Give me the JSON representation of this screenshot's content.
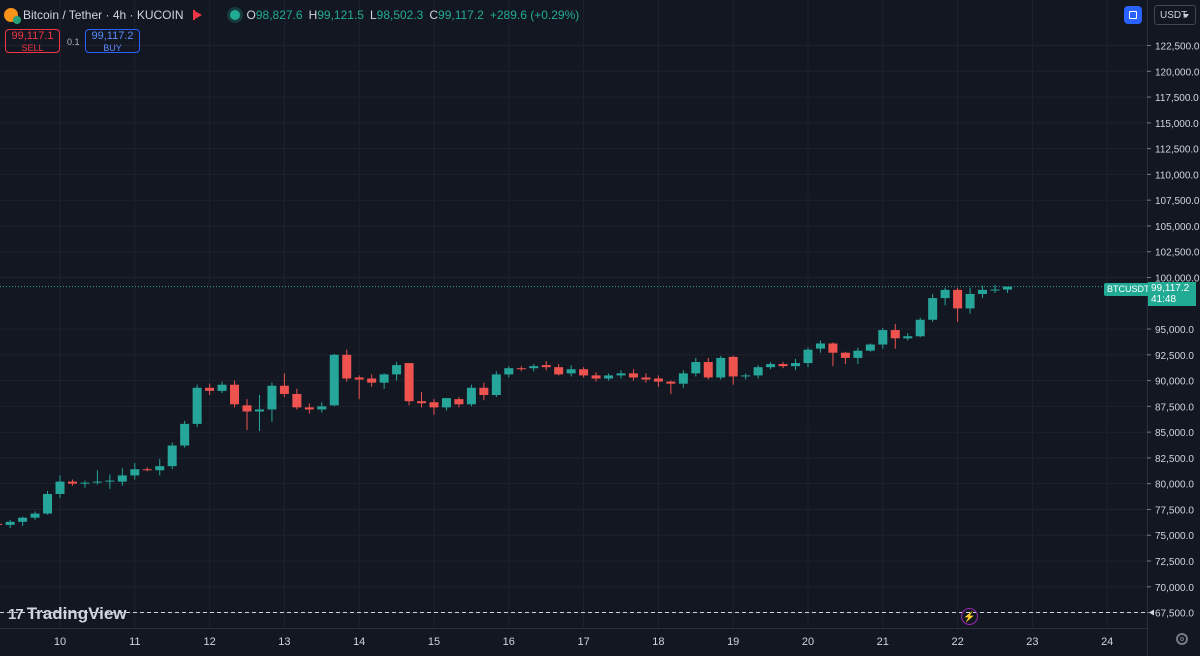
{
  "header": {
    "title": "Bitcoin / Tether · 4h · KUCOIN",
    "ohlc": [
      {
        "key": "O",
        "value": "98,827.6"
      },
      {
        "key": "H",
        "value": "99,121.5"
      },
      {
        "key": "L",
        "value": "98,502.3"
      },
      {
        "key": "C",
        "value": "99,117.2"
      }
    ],
    "change": "+289.6 (+0.29%)"
  },
  "trade": {
    "sell_price": "99,117.1",
    "sell_label": "SELL",
    "spread": "0.1",
    "buy_price": "99,117.2",
    "buy_label": "BUY"
  },
  "currency": "USDT",
  "brand": "TradingView",
  "last_price": {
    "symbol": "BTCUSDT",
    "price": "99,117.2",
    "countdown": "41:48"
  },
  "colors": {
    "background": "#131722",
    "up": "#26a69a",
    "down": "#ef5350",
    "grid": "#1e222d",
    "axis_text": "#d1d4dc",
    "price_line": "#22ab94"
  },
  "chart_data": {
    "type": "candlestick",
    "x_tick_labels": [
      "10",
      "11",
      "12",
      "13",
      "14",
      "15",
      "16",
      "17",
      "18",
      "19",
      "20",
      "21",
      "22",
      "23",
      "24"
    ],
    "y_tick_labels": [
      "122,500.0",
      "120,000.0",
      "117,500.0",
      "115,000.0",
      "112,500.0",
      "110,000.0",
      "107,500.0",
      "105,000.0",
      "102,500.0",
      "100,000.0",
      "95,000.0",
      "92,500.0",
      "90,000.0",
      "87,500.0",
      "85,000.0",
      "82,500.0",
      "80,000.0",
      "77,500.0",
      "75,000.0",
      "72,500.0",
      "70,000.0",
      "67,500.0"
    ],
    "ylim": [
      66000,
      124200
    ],
    "dashed_level": 67500,
    "last_price_level": 99117.2,
    "candles": [
      [
        76500,
        76700,
        76300,
        76450
      ],
      [
        76450,
        76600,
        76200,
        76550
      ],
      [
        76400,
        76500,
        76000,
        76200
      ],
      [
        76100,
        76300,
        75800,
        76000
      ],
      [
        76000,
        76500,
        75700,
        76300
      ],
      [
        76300,
        76800,
        75900,
        76700
      ],
      [
        76700,
        77300,
        76500,
        77100
      ],
      [
        77100,
        79300,
        77000,
        79000
      ],
      [
        79000,
        80800,
        78600,
        80200
      ],
      [
        80200,
        80400,
        79800,
        80000
      ],
      [
        80000,
        80300,
        79600,
        80100
      ],
      [
        80100,
        81300,
        79900,
        80200
      ],
      [
        80200,
        80900,
        79500,
        80300
      ],
      [
        80200,
        81500,
        79800,
        80800
      ],
      [
        80800,
        82000,
        80400,
        81400
      ],
      [
        81400,
        81600,
        81200,
        81300
      ],
      [
        81300,
        82400,
        80800,
        81700
      ],
      [
        81700,
        84000,
        81400,
        83700
      ],
      [
        83700,
        86100,
        83500,
        85800
      ],
      [
        85800,
        89600,
        85500,
        89300
      ],
      [
        89300,
        89700,
        88600,
        89000
      ],
      [
        89000,
        89900,
        88800,
        89600
      ],
      [
        89600,
        90000,
        87400,
        87700
      ],
      [
        87600,
        88200,
        85200,
        87000
      ],
      [
        87000,
        88600,
        85100,
        87200
      ],
      [
        87200,
        89800,
        86000,
        89500
      ],
      [
        89500,
        90700,
        88400,
        88700
      ],
      [
        88700,
        89200,
        87200,
        87400
      ],
      [
        87400,
        87800,
        86800,
        87200
      ],
      [
        87200,
        87900,
        86900,
        87500
      ],
      [
        87600,
        92600,
        87500,
        92500
      ],
      [
        92500,
        93000,
        89900,
        90200
      ],
      [
        90300,
        90500,
        88200,
        90100
      ],
      [
        90200,
        90600,
        89400,
        89800
      ],
      [
        89800,
        90700,
        89200,
        90600
      ],
      [
        90600,
        91800,
        90000,
        91500
      ],
      [
        91700,
        91700,
        87600,
        88000
      ],
      [
        88000,
        88900,
        87400,
        87800
      ],
      [
        87900,
        88200,
        86700,
        87400
      ],
      [
        87400,
        88300,
        87100,
        88300
      ],
      [
        88200,
        88400,
        87400,
        87700
      ],
      [
        87700,
        89600,
        87500,
        89300
      ],
      [
        89300,
        89800,
        88100,
        88600
      ],
      [
        88600,
        90900,
        88400,
        90600
      ],
      [
        90600,
        91400,
        90300,
        91200
      ],
      [
        91200,
        91400,
        90900,
        91100
      ],
      [
        91200,
        91600,
        90900,
        91400
      ],
      [
        91500,
        91900,
        91000,
        91300
      ],
      [
        91300,
        91600,
        90500,
        90600
      ],
      [
        90700,
        91500,
        90400,
        91100
      ],
      [
        91100,
        91300,
        90300,
        90500
      ],
      [
        90500,
        90800,
        89900,
        90200
      ],
      [
        90200,
        90700,
        90000,
        90500
      ],
      [
        90500,
        91000,
        90200,
        90700
      ],
      [
        90700,
        91100,
        90000,
        90300
      ],
      [
        90300,
        90700,
        89800,
        90100
      ],
      [
        90200,
        90500,
        89400,
        89900
      ],
      [
        89900,
        90000,
        88700,
        89700
      ],
      [
        89700,
        91000,
        89300,
        90700
      ],
      [
        90700,
        92200,
        90400,
        91800
      ],
      [
        91800,
        92200,
        90100,
        90300
      ],
      [
        90300,
        92400,
        90100,
        92200
      ],
      [
        92300,
        92400,
        89600,
        90400
      ],
      [
        90400,
        90700,
        90100,
        90500
      ],
      [
        90500,
        91500,
        90200,
        91300
      ],
      [
        91300,
        91800,
        91100,
        91600
      ],
      [
        91600,
        91800,
        91200,
        91400
      ],
      [
        91400,
        92100,
        91000,
        91700
      ],
      [
        91700,
        93200,
        91300,
        93000
      ],
      [
        93100,
        93900,
        92700,
        93600
      ],
      [
        93600,
        93700,
        91400,
        92700
      ],
      [
        92700,
        92800,
        91600,
        92200
      ],
      [
        92200,
        93200,
        91600,
        92900
      ],
      [
        92900,
        93600,
        92800,
        93500
      ],
      [
        93500,
        95100,
        93100,
        94900
      ],
      [
        94900,
        95500,
        93100,
        94100
      ],
      [
        94100,
        94600,
        93900,
        94300
      ],
      [
        94300,
        96100,
        94200,
        95900
      ],
      [
        95900,
        98400,
        95700,
        98000
      ],
      [
        98000,
        99000,
        97300,
        98800
      ],
      [
        98800,
        99000,
        95700,
        97000
      ],
      [
        97000,
        99000,
        96500,
        98400
      ],
      [
        98400,
        99200,
        98000,
        98800
      ],
      [
        98800,
        99300,
        98500,
        98830
      ],
      [
        98827.6,
        99121.5,
        98502.3,
        99117.2
      ]
    ]
  }
}
